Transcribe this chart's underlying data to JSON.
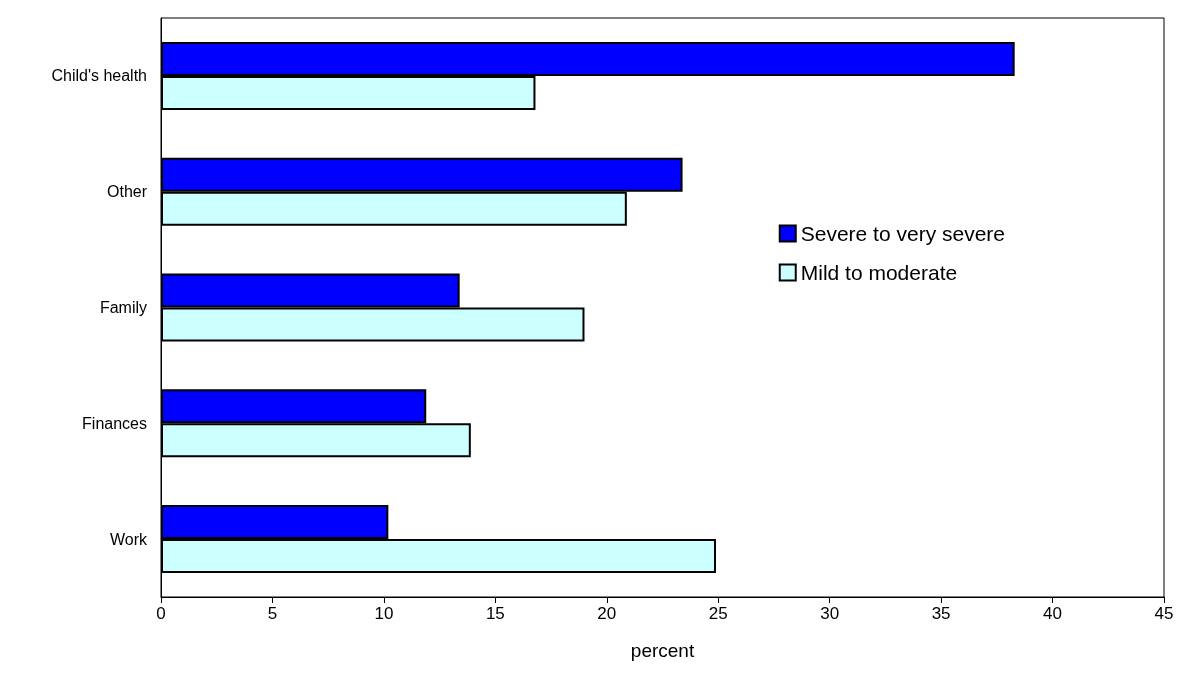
{
  "chart_data": {
    "type": "bar",
    "orientation": "horizontal",
    "xlabel": "percent",
    "categories": [
      "Child's health",
      "Other",
      "Family",
      "Finances",
      "Work"
    ],
    "series": [
      {
        "name": "Severe to very severe",
        "color": "#0000ff",
        "values": [
          38.3,
          23.4,
          13.4,
          11.9,
          10.2
        ]
      },
      {
        "name": "Mild to moderate",
        "color": "#ccffff",
        "values": [
          16.8,
          20.9,
          19.0,
          13.9,
          24.9
        ]
      }
    ],
    "xlim": [
      0,
      45
    ],
    "xticks": [
      0,
      5,
      10,
      15,
      20,
      25,
      30,
      35,
      40,
      45
    ],
    "grid": false,
    "legend": "right"
  }
}
